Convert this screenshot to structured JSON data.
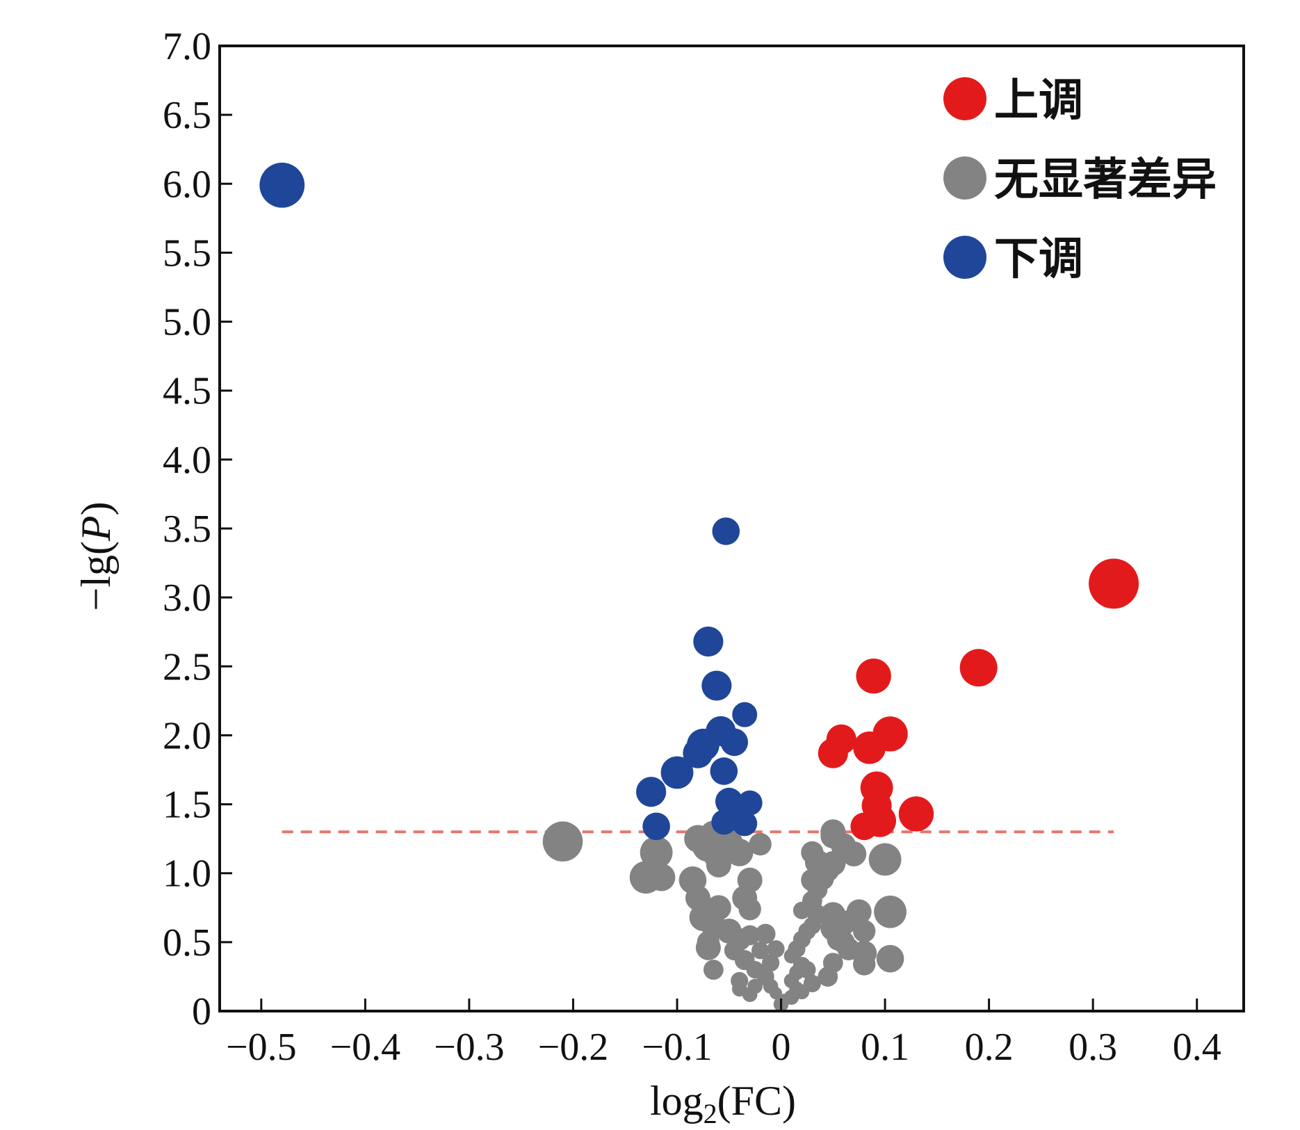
{
  "chart_data": {
    "type": "scatter",
    "xlabel": "log2(FC)",
    "ylabel": "-lg(P)",
    "xlim": [
      -0.54,
      0.445
    ],
    "ylim": [
      0,
      7.0
    ],
    "x_ticks": [
      -0.5,
      -0.4,
      -0.3,
      -0.2,
      -0.1,
      0,
      0.1,
      0.2,
      0.3,
      0.4
    ],
    "x_tick_labels": [
      "−0.5",
      "−0.4",
      "−0.3",
      "−0.2",
      "−0.1",
      "0",
      "0.1",
      "0.2",
      "0.3",
      "0.4"
    ],
    "y_ticks": [
      0,
      0.5,
      1.0,
      1.5,
      2.0,
      2.5,
      3.0,
      3.5,
      4.0,
      4.5,
      5.0,
      5.5,
      6.0,
      6.5,
      7.0
    ],
    "y_tick_labels": [
      "0",
      "0.5",
      "1.0",
      "1.5",
      "2.0",
      "2.5",
      "3.0",
      "3.5",
      "4.0",
      "4.5",
      "5.0",
      "5.5",
      "6.0",
      "6.5",
      "7.0"
    ],
    "grid": false,
    "legend_position": "top-right",
    "threshold": {
      "y": 1.3,
      "x_range": [
        -0.48,
        0.32
      ],
      "color": "#e8756a",
      "style": "dashed"
    },
    "series": [
      {
        "name": "上调",
        "color": "#e31a1c",
        "points": [
          [
            0.32,
            3.1,
            2.0
          ],
          [
            0.19,
            2.49,
            1.5
          ],
          [
            0.089,
            2.43,
            1.4
          ],
          [
            0.105,
            2.01,
            1.4
          ],
          [
            0.058,
            1.97,
            1.2
          ],
          [
            0.085,
            1.91,
            1.3
          ],
          [
            0.05,
            1.87,
            1.2
          ],
          [
            0.092,
            1.62,
            1.3
          ],
          [
            0.092,
            1.49,
            1.2
          ],
          [
            0.13,
            1.43,
            1.4
          ],
          [
            0.095,
            1.38,
            1.3
          ],
          [
            0.08,
            1.34,
            1.1
          ]
        ]
      },
      {
        "name": "无显著差异",
        "color": "#838383",
        "points": [
          [
            -0.21,
            1.23,
            1.6
          ],
          [
            -0.12,
            1.15,
            1.3
          ],
          [
            -0.07,
            1.2,
            1.3
          ],
          [
            -0.06,
            1.13,
            1.2
          ],
          [
            -0.08,
            1.25,
            1.1
          ],
          [
            -0.065,
            1.28,
            1.1
          ],
          [
            -0.05,
            1.22,
            1.1
          ],
          [
            -0.04,
            1.15,
            1.1
          ],
          [
            -0.02,
            1.21,
            0.9
          ],
          [
            -0.06,
            1.06,
            1.0
          ],
          [
            -0.13,
            0.97,
            1.3
          ],
          [
            -0.115,
            0.97,
            1.1
          ],
          [
            -0.085,
            0.95,
            1.1
          ],
          [
            -0.03,
            0.95,
            1.0
          ],
          [
            -0.08,
            0.82,
            1.0
          ],
          [
            -0.06,
            0.75,
            1.0
          ],
          [
            -0.035,
            0.82,
            1.0
          ],
          [
            -0.03,
            0.74,
            0.9
          ],
          [
            -0.075,
            0.68,
            1.1
          ],
          [
            -0.065,
            0.62,
            1.0
          ],
          [
            -0.05,
            0.58,
            1.0
          ],
          [
            -0.04,
            0.52,
            0.9
          ],
          [
            -0.07,
            0.5,
            0.9
          ],
          [
            -0.07,
            0.46,
            1.0
          ],
          [
            -0.045,
            0.44,
            0.8
          ],
          [
            -0.03,
            0.55,
            0.8
          ],
          [
            -0.015,
            0.56,
            0.8
          ],
          [
            -0.02,
            0.44,
            0.7
          ],
          [
            -0.035,
            0.37,
            0.8
          ],
          [
            -0.025,
            0.3,
            0.7
          ],
          [
            -0.015,
            0.25,
            0.7
          ],
          [
            -0.01,
            0.35,
            0.7
          ],
          [
            -0.005,
            0.45,
            0.7
          ],
          [
            -0.065,
            0.3,
            0.8
          ],
          [
            -0.04,
            0.22,
            0.7
          ],
          [
            -0.025,
            0.18,
            0.6
          ],
          [
            -0.01,
            0.18,
            0.6
          ],
          [
            -0.04,
            0.16,
            0.6
          ],
          [
            -0.03,
            0.12,
            0.6
          ],
          [
            -0.005,
            0.13,
            0.5
          ],
          [
            0.0,
            0.05,
            0.6
          ],
          [
            0.003,
            0.08,
            0.5
          ],
          [
            0.01,
            0.1,
            0.6
          ],
          [
            0.015,
            0.16,
            0.6
          ],
          [
            0.02,
            0.14,
            0.6
          ],
          [
            0.01,
            0.22,
            0.6
          ],
          [
            0.015,
            0.28,
            0.6
          ],
          [
            0.02,
            0.33,
            0.7
          ],
          [
            0.01,
            0.4,
            0.6
          ],
          [
            0.025,
            0.3,
            0.7
          ],
          [
            0.015,
            0.45,
            0.7
          ],
          [
            0.02,
            0.52,
            0.7
          ],
          [
            0.025,
            0.58,
            0.7
          ],
          [
            0.03,
            0.62,
            0.7
          ],
          [
            0.035,
            0.7,
            0.8
          ],
          [
            0.02,
            0.73,
            0.7
          ],
          [
            0.03,
            0.8,
            0.8
          ],
          [
            0.035,
            0.88,
            0.8
          ],
          [
            0.03,
            0.95,
            0.9
          ],
          [
            0.04,
            0.96,
            0.9
          ],
          [
            0.045,
            1.02,
            0.9
          ],
          [
            0.035,
            1.08,
            1.0
          ],
          [
            0.03,
            1.15,
            0.9
          ],
          [
            0.05,
            1.07,
            1.0
          ],
          [
            0.06,
            1.2,
            1.0
          ],
          [
            0.07,
            1.14,
            1.0
          ],
          [
            0.05,
            1.27,
            1.0
          ],
          [
            0.05,
            1.3,
            1.0
          ],
          [
            0.1,
            1.1,
            1.3
          ],
          [
            0.105,
            0.72,
            1.3
          ],
          [
            0.105,
            0.38,
            1.1
          ],
          [
            0.075,
            0.72,
            1.0
          ],
          [
            0.05,
            0.7,
            1.0
          ],
          [
            0.05,
            0.6,
            1.0
          ],
          [
            0.055,
            0.52,
            0.9
          ],
          [
            0.06,
            0.64,
            1.0
          ],
          [
            0.08,
            0.58,
            0.9
          ],
          [
            0.065,
            0.45,
            0.9
          ],
          [
            0.08,
            0.42,
            1.0
          ],
          [
            0.08,
            0.34,
            0.9
          ],
          [
            0.05,
            0.35,
            0.8
          ],
          [
            0.045,
            0.25,
            0.8
          ],
          [
            0.06,
            0.5,
            0.9
          ],
          [
            0.03,
            0.2,
            0.7
          ]
        ]
      },
      {
        "name": "下调",
        "color": "#1f4698",
        "points": [
          [
            -0.48,
            5.99,
            1.8
          ],
          [
            -0.053,
            3.48,
            1.1
          ],
          [
            -0.07,
            2.68,
            1.2
          ],
          [
            -0.062,
            2.36,
            1.2
          ],
          [
            -0.035,
            2.15,
            1.0
          ],
          [
            -0.058,
            2.03,
            1.2
          ],
          [
            -0.045,
            1.95,
            1.1
          ],
          [
            -0.075,
            1.93,
            1.3
          ],
          [
            -0.08,
            1.87,
            1.2
          ],
          [
            -0.1,
            1.73,
            1.3
          ],
          [
            -0.055,
            1.74,
            1.1
          ],
          [
            -0.125,
            1.59,
            1.2
          ],
          [
            -0.05,
            1.52,
            1.1
          ],
          [
            -0.03,
            1.51,
            1.0
          ],
          [
            -0.045,
            1.44,
            1.0
          ],
          [
            -0.04,
            1.39,
            1.0
          ],
          [
            -0.12,
            1.34,
            1.1
          ],
          [
            -0.055,
            1.37,
            1.0
          ],
          [
            -0.035,
            1.36,
            1.0
          ]
        ]
      }
    ]
  }
}
